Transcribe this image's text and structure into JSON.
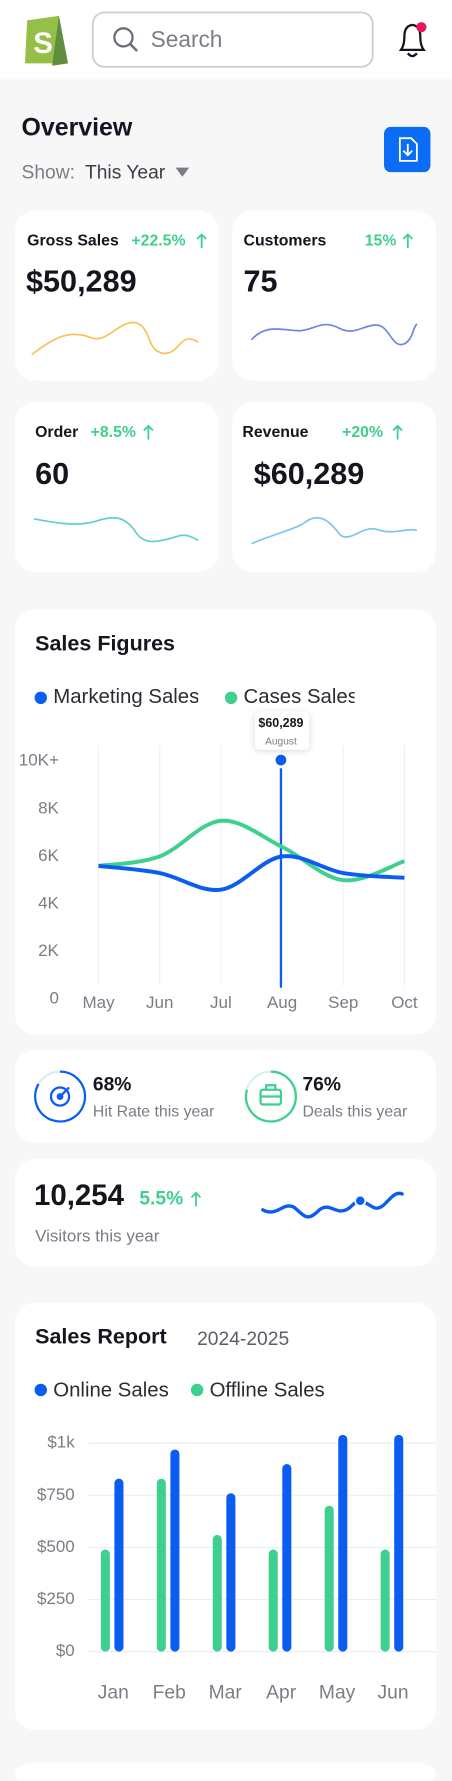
{
  "header": {
    "search_placeholder": "Search"
  },
  "overview": {
    "title": "Overview",
    "show_label": "Show:",
    "show_value": "This Year"
  },
  "cards": [
    {
      "label": "Gross Sales",
      "change": "+22.5%",
      "value": "$50,289"
    },
    {
      "label": "Customers",
      "change": "15%",
      "value": "75"
    },
    {
      "label": "Order",
      "change": "+8.5%",
      "value": "60"
    },
    {
      "label": "Revenue",
      "change": "+20%",
      "value": "$60,289"
    }
  ],
  "sales_figures": {
    "type": "line",
    "title": "Sales Figures",
    "categories": [
      "May",
      "Jun",
      "Jul",
      "Aug",
      "Sep",
      "Oct"
    ],
    "series": [
      {
        "name": "Marketing Sales",
        "color": "#0b5cf0",
        "values": [
          5600,
          5300,
          4600,
          6000,
          5300,
          5100
        ]
      },
      {
        "name": "Cases Sales",
        "color": "#3fcf8e",
        "values": [
          5600,
          6000,
          7500,
          6400,
          5000,
          5800
        ]
      }
    ],
    "ylim": [
      0,
      10000
    ],
    "yticks": [
      0,
      {
        "value": 2000,
        "label": "2K"
      },
      {
        "value": 4000,
        "label": "4K"
      },
      {
        "value": 6000,
        "label": "6K"
      },
      {
        "value": 8000,
        "label": "8K"
      },
      {
        "value": 10000,
        "label": "10K+"
      }
    ],
    "annotation": {
      "value": "$60,289",
      "label": "August"
    }
  },
  "stats": [
    {
      "value": "68%",
      "label": "Hit Rate this year"
    },
    {
      "value": "76%",
      "label": "Deals this year"
    }
  ],
  "visitors": {
    "value": "10,254",
    "change": "5.5%",
    "label": "Visitors this year"
  },
  "sales_report": {
    "type": "bar",
    "title": "Sales Report",
    "period": "2024-2025",
    "categories": [
      "Jan",
      "Feb",
      "Mar",
      "Apr",
      "May",
      "Jun"
    ],
    "series": [
      {
        "name": "Online Sales",
        "color": "#0b5cf0",
        "values": [
          830,
          970,
          760,
          900,
          1040,
          1040
        ]
      },
      {
        "name": "Offline Sales",
        "color": "#3fcf8e",
        "values": [
          490,
          830,
          560,
          490,
          700,
          490
        ]
      }
    ],
    "ylim": [
      0,
      1100
    ],
    "yticks": [
      {
        "value": 0,
        "label": "$0"
      },
      {
        "value": 250,
        "label": "$250"
      },
      {
        "value": 500,
        "label": "$500"
      },
      {
        "value": 750,
        "label": "$750"
      },
      {
        "value": 1000,
        "label": "$1k"
      }
    ],
    "grid": true
  }
}
